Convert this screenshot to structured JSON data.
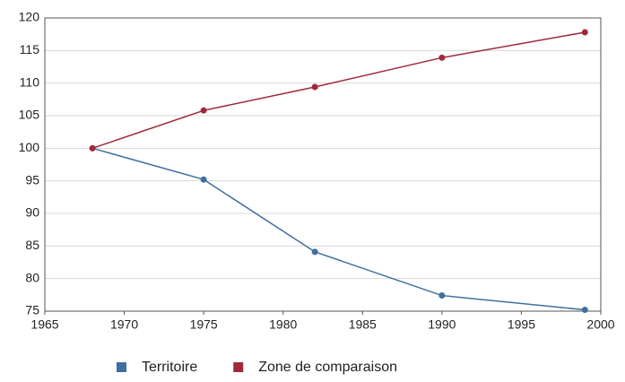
{
  "chart_data": {
    "type": "line",
    "x": [
      1968,
      1975,
      1982,
      1990,
      1999
    ],
    "series": [
      {
        "name": "Territoire",
        "color": "#3f6f9f",
        "values": [
          100,
          95.2,
          84.1,
          77.4,
          75.2
        ]
      },
      {
        "name": "Zone de comparaison",
        "color": "#9e2a3a",
        "values": [
          100,
          105.8,
          109.4,
          113.9,
          117.8
        ]
      }
    ],
    "xlim": [
      1965,
      2000
    ],
    "xticks": [
      1965,
      1970,
      1975,
      1980,
      1985,
      1990,
      1995,
      2000
    ],
    "ylim": [
      75,
      120
    ],
    "yticks": [
      75,
      80,
      85,
      90,
      95,
      100,
      105,
      110,
      115,
      120
    ],
    "grid": true,
    "legend": "bottom"
  }
}
